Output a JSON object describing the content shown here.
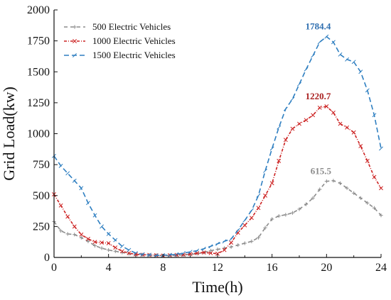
{
  "chart_data": {
    "type": "line",
    "xlabel": "Time(h)",
    "ylabel": "Grid Load(kw)",
    "xlim": [
      0,
      24
    ],
    "ylim": [
      0,
      2000
    ],
    "xticks": [
      0,
      4,
      8,
      12,
      16,
      20,
      24
    ],
    "yticks": [
      0,
      250,
      500,
      750,
      1000,
      1250,
      1500,
      1750,
      2000
    ],
    "grid": false,
    "legend_position": "top-left",
    "series": [
      {
        "name": "500 Electric Vehicles",
        "color": "#8c8c8c",
        "dash": "5,4",
        "marker": "plus",
        "x": [
          0,
          0.5,
          1,
          1.5,
          2,
          2.5,
          3,
          3.5,
          4,
          4.5,
          5,
          5.5,
          6,
          6.5,
          7,
          7.5,
          8,
          8.5,
          9,
          9.5,
          10,
          10.5,
          11,
          11.5,
          12,
          12.5,
          13,
          13.5,
          14,
          14.5,
          15,
          15.5,
          16,
          16.5,
          17,
          17.5,
          18,
          18.5,
          19,
          19.5,
          20,
          20.5,
          21,
          21.5,
          22,
          22.5,
          23,
          23.5,
          24
        ],
        "y": [
          290,
          215,
          190,
          185,
          160,
          130,
          95,
          75,
          60,
          50,
          40,
          30,
          25,
          22,
          20,
          18,
          15,
          16,
          18,
          20,
          25,
          30,
          40,
          55,
          65,
          75,
          85,
          100,
          115,
          130,
          160,
          240,
          310,
          335,
          345,
          360,
          390,
          430,
          480,
          550,
          615.5,
          620,
          600,
          560,
          520,
          480,
          440,
          400,
          340
        ]
      },
      {
        "name": "1000 Electric Vehicles",
        "color": "#cc2222",
        "dash": "4,2,1,2",
        "marker": "x",
        "x": [
          0,
          0.5,
          1,
          1.5,
          2,
          2.5,
          3,
          3.5,
          4,
          4.5,
          5,
          5.5,
          6,
          6.5,
          7,
          7.5,
          8,
          8.5,
          9,
          9.5,
          10,
          10.5,
          11,
          11.5,
          12,
          12.5,
          13,
          13.5,
          14,
          14.5,
          15,
          15.5,
          16,
          16.5,
          17,
          17.5,
          18,
          18.5,
          19,
          19.5,
          20,
          20.5,
          21,
          21.5,
          22,
          22.5,
          23,
          23.5,
          24
        ],
        "y": [
          510,
          420,
          330,
          250,
          185,
          150,
          125,
          120,
          115,
          80,
          50,
          35,
          25,
          22,
          20,
          18,
          15,
          18,
          20,
          22,
          28,
          35,
          40,
          35,
          30,
          60,
          120,
          200,
          260,
          320,
          400,
          500,
          600,
          780,
          950,
          1040,
          1080,
          1110,
          1150,
          1210,
          1220.7,
          1170,
          1080,
          1050,
          1010,
          900,
          780,
          650,
          560
        ]
      },
      {
        "name": "1500 Electric Vehicles",
        "color": "#2f7fc1",
        "dash": "7,4",
        "marker": "tick",
        "x": [
          0,
          0.5,
          1,
          1.5,
          2,
          2.5,
          3,
          3.5,
          4,
          4.5,
          5,
          5.5,
          6,
          6.5,
          7,
          7.5,
          8,
          8.5,
          9,
          9.5,
          10,
          10.5,
          11,
          11.5,
          12,
          12.5,
          13,
          13.5,
          14,
          14.5,
          15,
          15.5,
          16,
          16.5,
          17,
          17.5,
          18,
          18.5,
          19,
          19.5,
          20,
          20.5,
          21,
          21.5,
          22,
          22.5,
          23,
          23.5,
          24
        ],
        "y": [
          820,
          740,
          680,
          620,
          560,
          440,
          340,
          250,
          190,
          140,
          90,
          60,
          35,
          25,
          20,
          15,
          18,
          20,
          25,
          35,
          45,
          55,
          70,
          90,
          110,
          130,
          150,
          220,
          300,
          380,
          500,
          700,
          880,
          1050,
          1200,
          1280,
          1400,
          1520,
          1630,
          1740,
          1784.4,
          1740,
          1640,
          1600,
          1580,
          1500,
          1350,
          1150,
          880
        ]
      }
    ],
    "annotations": [
      {
        "text": "615.5",
        "x": 20,
        "y": 615.5,
        "color": "#8c8c8c"
      },
      {
        "text": "1220.7",
        "x": 19.8,
        "y": 1220.7,
        "color": "#aa2222"
      },
      {
        "text": "1784.4",
        "x": 19.8,
        "y": 1784.4,
        "color": "#2f6fb0"
      }
    ]
  }
}
